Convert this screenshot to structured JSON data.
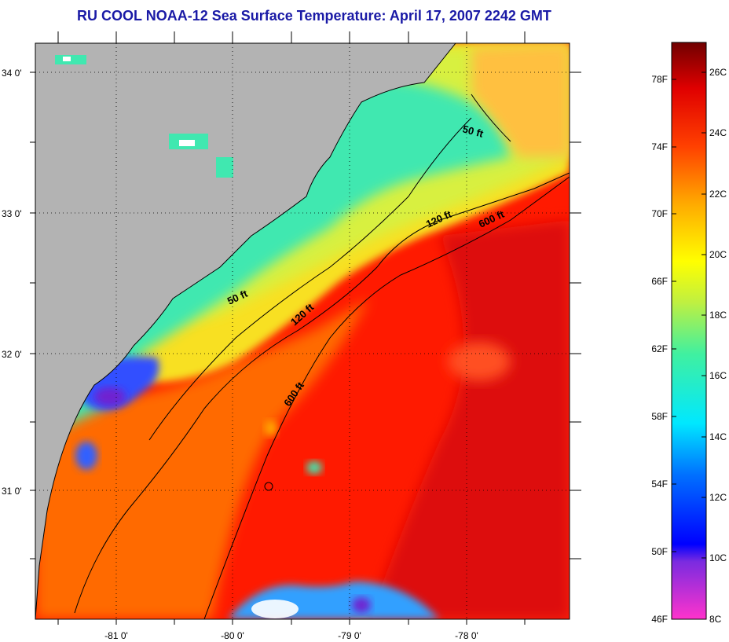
{
  "title": "RU COOL  NOAA-12  Sea Surface Temperature:  April 17, 2007 2242 GMT",
  "latitude_labels": [
    "34 0'",
    "33 0'",
    "32 0'",
    "31 0'"
  ],
  "longitude_labels": [
    "-81 0'",
    "-80 0'",
    "-79 0'",
    "-78 0'"
  ],
  "contour_labels": {
    "nearshore_50ft_north": "50 ft",
    "nearshore_50ft_south": "50 ft",
    "shelf_120ft_north": "120 ft",
    "shelf_120ft_south": "120 ft",
    "shelf_break_600ft_north": "600 ft",
    "shelf_break_600ft_south": "600 ft"
  },
  "colorbar": {
    "fahrenheit_labels": [
      "78F",
      "74F",
      "70F",
      "66F",
      "62F",
      "58F",
      "54F",
      "50F",
      "46F"
    ],
    "celsius_labels": [
      "26C",
      "24C",
      "22C",
      "20C",
      "18C",
      "16C",
      "14C",
      "12C",
      "10C",
      "8C"
    ]
  },
  "colors": {
    "land": "#b3b3b3",
    "title": "#1a1aa6",
    "warm": "#ff1a00",
    "cool": "#33e8c0"
  }
}
